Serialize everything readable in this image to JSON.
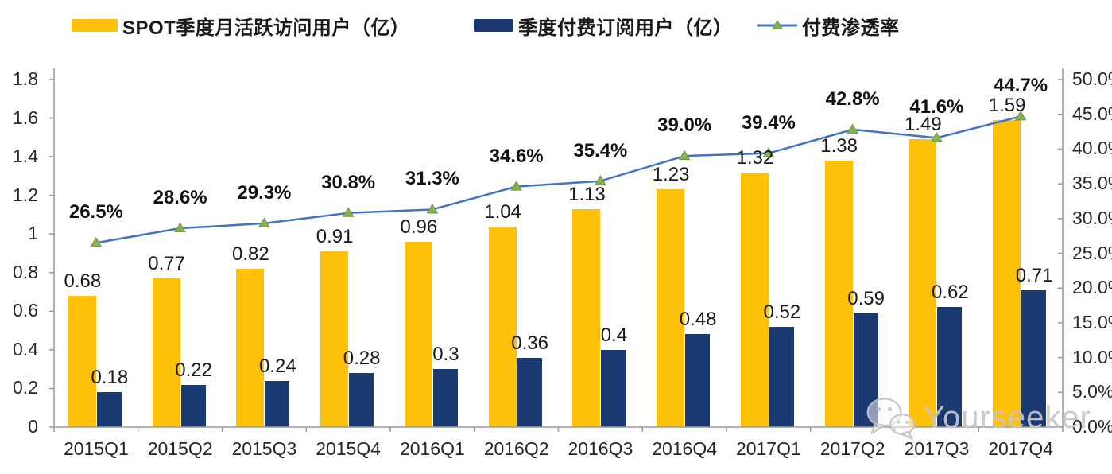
{
  "legend": {
    "items": [
      {
        "label": "SPOT季度月活跃访问用户（亿）",
        "swatch": "bar",
        "color": "#FFC008"
      },
      {
        "label": "季度付费订阅用户（亿）",
        "swatch": "bar",
        "color": "#1B3A71"
      },
      {
        "label": "付费渗透率",
        "swatch": "line",
        "color": "#4472C4",
        "marker_color": "#86B14E"
      }
    ]
  },
  "watermark": {
    "icon": "wechat-icon",
    "text": "Yourseeker"
  },
  "colors": {
    "axis": "#999999",
    "bar_mau": "#FFC008",
    "bar_sub": "#1B3A71",
    "line": "#4472C4",
    "marker_fill": "#86B14E",
    "marker_stroke": "#6d9a3f"
  },
  "chart_data": {
    "type": "bar",
    "subtype": "combo-bar-line-dual-axis",
    "title": "",
    "legend_position": "top",
    "grid": false,
    "categories": [
      "2015Q1",
      "2015Q2",
      "2015Q3",
      "2015Q4",
      "2016Q1",
      "2016Q2",
      "2016Q3",
      "2016Q4",
      "2017Q1",
      "2017Q2",
      "2017Q3",
      "2017Q4"
    ],
    "series": [
      {
        "name": "SPOT季度月活跃访问用户（亿）",
        "type": "bar",
        "axis": "left",
        "color": "#FFC008",
        "values": [
          0.68,
          0.77,
          0.82,
          0.91,
          0.96,
          1.04,
          1.13,
          1.23,
          1.32,
          1.38,
          1.49,
          1.59
        ],
        "labels": [
          "0.68",
          "0.77",
          "0.82",
          "0.91",
          "0.96",
          "1.04",
          "1.13",
          "1.23",
          "1.32",
          "1.38",
          "1.49",
          "1.59"
        ]
      },
      {
        "name": "季度付费订阅用户（亿）",
        "type": "bar",
        "axis": "left",
        "color": "#1B3A71",
        "values": [
          0.18,
          0.22,
          0.24,
          0.28,
          0.3,
          0.36,
          0.4,
          0.48,
          0.52,
          0.59,
          0.62,
          0.71
        ],
        "labels": [
          "0.18",
          "0.22",
          "0.24",
          "0.28",
          "0.3",
          "0.36",
          "0.4",
          "0.48",
          "0.52",
          "0.59",
          "0.62",
          "0.71"
        ]
      },
      {
        "name": "付费渗透率",
        "type": "line",
        "axis": "right",
        "color": "#4472C4",
        "marker": "triangle",
        "marker_color": "#86B14E",
        "values": [
          26.5,
          28.6,
          29.3,
          30.8,
          31.3,
          34.6,
          35.4,
          39.0,
          39.4,
          42.8,
          41.6,
          44.7
        ],
        "labels": [
          "26.5%",
          "28.6%",
          "29.3%",
          "30.8%",
          "31.3%",
          "34.6%",
          "35.4%",
          "39.0%",
          "39.4%",
          "42.8%",
          "41.6%",
          "44.7%"
        ]
      }
    ],
    "left_axis": {
      "min": 0,
      "max": 1.8,
      "ticks": [
        "0",
        "0.2",
        "0.4",
        "0.6",
        "0.8",
        "1",
        "1.2",
        "1.4",
        "1.6",
        "1.8"
      ]
    },
    "right_axis": {
      "min": 0,
      "max": 50,
      "ticks": [
        "0.0%",
        "5.0%",
        "10.0%",
        "15.0%",
        "20.0%",
        "25.0%",
        "30.0%",
        "35.0%",
        "40.0%",
        "45.0%",
        "50.0%"
      ]
    }
  }
}
